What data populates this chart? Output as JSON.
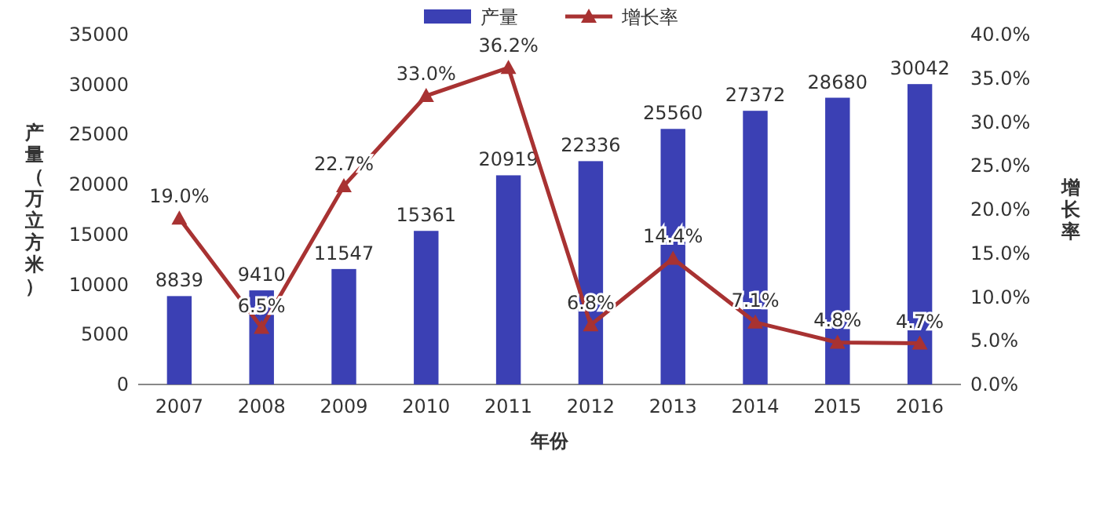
{
  "chart_data": {
    "type": "bar",
    "categories": [
      "2007",
      "2008",
      "2009",
      "2010",
      "2011",
      "2012",
      "2013",
      "2014",
      "2015",
      "2016"
    ],
    "series": [
      {
        "name": "产量",
        "color": "#3b40b4",
        "values": [
          8839,
          9410,
          11547,
          15361,
          20919,
          22336,
          25560,
          27372,
          28680,
          30042
        ],
        "value_labels": [
          "8839",
          "9410",
          "11547",
          "15361",
          "20919",
          "22336",
          "25560",
          "27372",
          "28680",
          "30042"
        ]
      },
      {
        "name": "增长率",
        "type": "line",
        "axis": "y2",
        "color": "#a83232",
        "marker": "triangle",
        "values": [
          19.0,
          6.5,
          22.7,
          33.0,
          36.2,
          6.8,
          14.4,
          7.1,
          4.8,
          4.7
        ],
        "value_labels": [
          "19.0%",
          "6.5%",
          "22.7%",
          "33.0%",
          "36.2%",
          "6.8%",
          "14.4%",
          "7.1%",
          "4.8%",
          "4.7%"
        ]
      }
    ],
    "ylim": [
      0,
      35000
    ],
    "yticks": [
      0,
      5000,
      10000,
      15000,
      20000,
      25000,
      30000,
      35000
    ],
    "y2lim": [
      0,
      40
    ],
    "y2ticks": [
      {
        "value": 0,
        "label": "0.0%"
      },
      {
        "value": 5,
        "label": "5.0%"
      },
      {
        "value": 10,
        "label": "10.0%"
      },
      {
        "value": 15,
        "label": "15.0%"
      },
      {
        "value": 20,
        "label": "20.0%"
      },
      {
        "value": 25,
        "label": "25.0%"
      },
      {
        "value": 30,
        "label": "30.0%"
      },
      {
        "value": 35,
        "label": "35.0%"
      },
      {
        "value": 40,
        "label": "40.0%"
      }
    ],
    "ylabel": "产量（万立方米）",
    "y2label": "增长率",
    "xlabel": "年份",
    "legend": "top"
  }
}
